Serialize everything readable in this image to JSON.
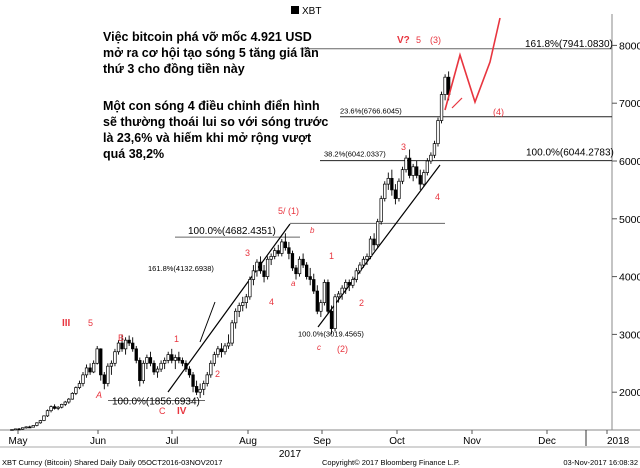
{
  "chart_data": {
    "type": "candlestick",
    "legend": "XBT",
    "footer_left": "XBT Curncy (Bitcoin) Shared Daily  Daily 05OCT2016-03NOV2017",
    "footer_mid": "Copyright© 2017 Bloomberg Finance L.P.",
    "footer_right": "03-Nov-2017 16:08:32",
    "year_label": "2017",
    "ylim": [
      1700,
      8700
    ],
    "y_ticks": [
      2000,
      3000,
      4000,
      5000,
      6000,
      7000,
      8000
    ],
    "x_months": [
      "May",
      "Jun",
      "Jul",
      "Aug",
      "Sep",
      "Oct",
      "Nov",
      "Dec",
      "2018"
    ],
    "annotation_1": "Việc bitcoin phá vỡ mốc 4.921 USD mở ra cơ hội tạo sóng 5 tăng giá lần thứ 3 cho đồng tiền này",
    "annotation_2": "Một con sóng 4 điều chỉnh điển hình sẽ thường thoái lui so với sóng trước là 23,6% và hiếm khi mở rộng vượt quá 38,2%",
    "fib_levels": [
      {
        "label": "161.8%(7941.0830)",
        "value": 7941
      },
      {
        "label": "23.6%(6766.6045)",
        "value": 6766
      },
      {
        "label": "38.2%(6042.0337)",
        "value": 6042
      },
      {
        "label": "100.0%(6044.2783)",
        "value": 6044
      },
      {
        "label": "100.0%(4682.4351)",
        "value": 4682
      },
      {
        "label": "161.8%(4132.6938)",
        "value": 4132
      },
      {
        "label": "100.0%(3019.4565)",
        "value": 3019
      },
      {
        "label": "100.0%(1856.6934)",
        "value": 1856
      }
    ],
    "wave_labels": [
      "III",
      "5",
      "B",
      "A",
      "1",
      "2",
      "C",
      "IV",
      "3",
      "a",
      "5/ (1)",
      "b",
      "4",
      "1",
      "2",
      "c",
      "(2)",
      "3",
      "4",
      "V?",
      "5",
      "(3)",
      "(4)"
    ],
    "candles": [
      [
        1.0,
        1350,
        1360,
        1340,
        1355
      ],
      [
        2.0,
        1355,
        1370,
        1345,
        1365
      ],
      [
        3.0,
        1365,
        1380,
        1355,
        1360
      ],
      [
        4.0,
        1360,
        1390,
        1350,
        1385
      ],
      [
        5.0,
        1385,
        1410,
        1370,
        1400
      ],
      [
        6.0,
        1400,
        1420,
        1385,
        1395
      ],
      [
        7.0,
        1395,
        1430,
        1390,
        1425
      ],
      [
        8.0,
        1425,
        1480,
        1410,
        1470
      ],
      [
        9.0,
        1470,
        1520,
        1455,
        1510
      ],
      [
        10.0,
        1510,
        1600,
        1500,
        1590
      ],
      [
        11.0,
        1590,
        1700,
        1570,
        1680
      ],
      [
        12.0,
        1680,
        1770,
        1650,
        1750
      ],
      [
        13.0,
        1750,
        1790,
        1700,
        1720
      ],
      [
        14.0,
        1720,
        1760,
        1690,
        1740
      ],
      [
        15.0,
        1740,
        1800,
        1720,
        1790
      ],
      [
        16.0,
        1790,
        1850,
        1760,
        1830
      ],
      [
        17.0,
        1830,
        1900,
        1800,
        1880
      ],
      [
        18.0,
        1880,
        2000,
        1870,
        1980
      ],
      [
        19.0,
        1980,
        2100,
        1950,
        2080
      ],
      [
        20.0,
        2080,
        2200,
        2050,
        2150
      ],
      [
        21.0,
        2150,
        2350,
        2100,
        2300
      ],
      [
        22.0,
        2300,
        2480,
        2250,
        2420
      ],
      [
        23.0,
        2420,
        2500,
        2300,
        2350
      ],
      [
        24.0,
        2350,
        2550,
        2330,
        2500
      ],
      [
        25.0,
        2500,
        2800,
        2480,
        2750
      ],
      [
        26.0,
        2750,
        2760,
        2200,
        2300
      ],
      [
        27.0,
        2300,
        2350,
        2050,
        2150
      ],
      [
        28.0,
        2150,
        2500,
        2100,
        2450
      ],
      [
        29.0,
        2450,
        2550,
        2300,
        2500
      ],
      [
        30.0,
        2500,
        2750,
        2450,
        2700
      ],
      [
        31.0,
        2700,
        2900,
        2650,
        2850
      ],
      [
        32.0,
        2850,
        3000,
        2700,
        2750
      ],
      [
        33.0,
        2750,
        2950,
        2650,
        2900
      ],
      [
        34.0,
        2900,
        2980,
        2800,
        2850
      ],
      [
        35.0,
        2850,
        2950,
        2700,
        2750
      ],
      [
        36.0,
        2750,
        2800,
        2500,
        2550
      ],
      [
        37.0,
        2550,
        2600,
        2100,
        2200
      ],
      [
        38.0,
        2200,
        2550,
        2150,
        2500
      ],
      [
        39.0,
        2500,
        2650,
        2400,
        2600
      ],
      [
        40.0,
        2600,
        2700,
        2450,
        2500
      ],
      [
        41.0,
        2500,
        2550,
        2300,
        2350
      ],
      [
        42.0,
        2350,
        2450,
        2250,
        2400
      ],
      [
        43.0,
        2400,
        2550,
        2350,
        2500
      ],
      [
        44.0,
        2500,
        2600,
        2400,
        2550
      ],
      [
        45.0,
        2550,
        2700,
        2500,
        2650
      ],
      [
        46.0,
        2650,
        2750,
        2500,
        2550
      ],
      [
        47.0,
        2550,
        2650,
        2400,
        2600
      ],
      [
        48.0,
        2600,
        2700,
        2500,
        2550
      ],
      [
        49.0,
        2550,
        2600,
        2450,
        2500
      ],
      [
        50.0,
        2500,
        2550,
        2350,
        2400
      ],
      [
        51.0,
        2400,
        2450,
        2250,
        2300
      ],
      [
        52.0,
        2300,
        2350,
        2000,
        2100
      ],
      [
        53.0,
        2100,
        2200,
        1950,
        2000
      ],
      [
        54.0,
        2000,
        2150,
        1900,
        2050
      ],
      [
        55.0,
        2050,
        2200,
        1950,
        2150
      ],
      [
        56.0,
        2150,
        2350,
        2100,
        2300
      ],
      [
        57.0,
        2300,
        2550,
        2250,
        2500
      ],
      [
        58.0,
        2500,
        2700,
        2450,
        2650
      ],
      [
        59.0,
        2650,
        2800,
        2600,
        2750
      ],
      [
        60.0,
        2750,
        2850,
        2600,
        2700
      ],
      [
        61.0,
        2700,
        2850,
        2650,
        2800
      ],
      [
        62.0,
        2800,
        3000,
        2750,
        2850
      ],
      [
        63.0,
        2850,
        3250,
        2800,
        3200
      ],
      [
        64.0,
        3200,
        3450,
        3100,
        3400
      ],
      [
        65.0,
        3400,
        3550,
        3300,
        3500
      ],
      [
        66.0,
        3500,
        3650,
        3400,
        3550
      ],
      [
        67.0,
        3550,
        3700,
        3450,
        3650
      ],
      [
        68.0,
        3650,
        4000,
        3600,
        3950
      ],
      [
        69.0,
        3950,
        4200,
        3850,
        4100
      ],
      [
        70.0,
        4100,
        4300,
        4000,
        4250
      ],
      [
        71.0,
        4250,
        4350,
        4050,
        4100
      ],
      [
        72.0,
        4100,
        4200,
        3900,
        4000
      ],
      [
        73.0,
        4000,
        4350,
        3950,
        4300
      ],
      [
        74.0,
        4300,
        4400,
        4200,
        4350
      ],
      [
        75.0,
        4350,
        4500,
        4300,
        4450
      ],
      [
        76.0,
        4450,
        4550,
        4350,
        4400
      ],
      [
        77.0,
        4400,
        4650,
        4350,
        4600
      ],
      [
        78.0,
        4600,
        4750,
        4450,
        4500
      ],
      [
        79.0,
        4500,
        4600,
        4300,
        4400
      ],
      [
        80.0,
        4400,
        4450,
        4100,
        4150
      ],
      [
        81.0,
        4150,
        4200,
        3950,
        4050
      ],
      [
        82.0,
        4050,
        4350,
        4000,
        4300
      ],
      [
        83.0,
        4300,
        4400,
        4150,
        4200
      ],
      [
        84.0,
        4200,
        4250,
        3950,
        4000
      ],
      [
        85.0,
        4000,
        4150,
        3850,
        3950
      ],
      [
        86.0,
        3950,
        4050,
        3700,
        3750
      ],
      [
        87.0,
        3750,
        3850,
        3350,
        3400
      ],
      [
        88.0,
        3400,
        3600,
        3300,
        3550
      ],
      [
        89.0,
        3550,
        3950,
        3500,
        3900
      ],
      [
        90.0,
        3900,
        3950,
        3350,
        3400
      ],
      [
        91.0,
        3400,
        3500,
        3000,
        3100
      ],
      [
        92.0,
        3100,
        3700,
        3050,
        3650
      ],
      [
        93.0,
        3650,
        3750,
        3550,
        3700
      ],
      [
        94.0,
        3700,
        3850,
        3600,
        3800
      ],
      [
        95.0,
        3800,
        3950,
        3700,
        3900
      ],
      [
        96.0,
        3900,
        3950,
        3750,
        3850
      ],
      [
        97.0,
        3850,
        4000,
        3800,
        3950
      ],
      [
        98.0,
        3950,
        4150,
        3900,
        4100
      ],
      [
        99.0,
        4100,
        4250,
        4050,
        4200
      ],
      [
        100.0,
        4200,
        4350,
        4150,
        4300
      ],
      [
        101.0,
        4300,
        4400,
        4200,
        4350
      ],
      [
        102.0,
        4350,
        4700,
        4300,
        4650
      ],
      [
        103.0,
        4650,
        4750,
        4450,
        4550
      ],
      [
        104.0,
        4550,
        5000,
        4500,
        4950
      ],
      [
        105.0,
        4950,
        5400,
        4900,
        5350
      ],
      [
        106.0,
        5350,
        5650,
        5300,
        5600
      ],
      [
        107.0,
        5600,
        5800,
        5500,
        5700
      ],
      [
        108.0,
        5700,
        5850,
        5400,
        5500
      ],
      [
        109.0,
        5500,
        5600,
        5250,
        5350
      ],
      [
        110.0,
        5350,
        5700,
        5300,
        5650
      ],
      [
        111.0,
        5650,
        5900,
        5600,
        5850
      ],
      [
        112.0,
        5850,
        6100,
        5800,
        6050
      ],
      [
        113.0,
        6050,
        6200,
        5700,
        5750
      ],
      [
        114.0,
        5750,
        5950,
        5650,
        5900
      ],
      [
        115.0,
        5900,
        6000,
        5700,
        5750
      ],
      [
        116.0,
        5750,
        5850,
        5500,
        5600
      ],
      [
        117.0,
        5600,
        5850,
        5550,
        5800
      ],
      [
        118.0,
        5800,
        6050,
        5750,
        6000
      ],
      [
        119.0,
        6000,
        6150,
        5950,
        6100
      ],
      [
        120.0,
        6100,
        6350,
        6050,
        6300
      ],
      [
        121.0,
        6300,
        6750,
        6250,
        6700
      ],
      [
        122.0,
        6700,
        7200,
        6650,
        7150
      ],
      [
        123.0,
        7150,
        7500,
        7050,
        7450
      ],
      [
        124.0,
        7450,
        7550,
        7050,
        7150
      ]
    ]
  }
}
